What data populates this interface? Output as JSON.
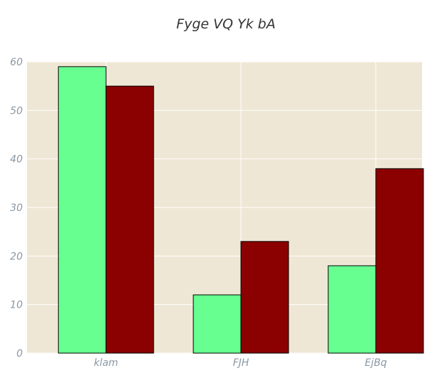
{
  "chart_data": {
    "type": "bar",
    "title": "Fyge VQ Yk bA",
    "xlabel": "",
    "ylabel": "",
    "categories": [
      "klam",
      "FJH",
      "EjBq"
    ],
    "series": [
      {
        "values": [
          59,
          12,
          18
        ],
        "color": "#66ff90"
      },
      {
        "values": [
          55,
          23,
          38
        ],
        "color": "#8b0000"
      }
    ],
    "ylim": [
      0,
      60
    ],
    "yticks": [
      0,
      10,
      20,
      30,
      40,
      50,
      60
    ],
    "grid": true,
    "plot_background": "#efe7d5"
  }
}
